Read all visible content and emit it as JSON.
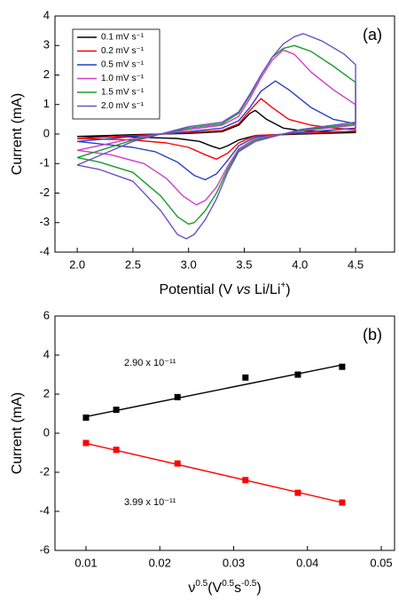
{
  "chart_data": [
    {
      "type": "line",
      "panel_label": "(a)",
      "xlabel": [
        {
          "text": "Potential (V "
        },
        {
          "text": "vs",
          "italic": true
        },
        {
          "text": " Li/Li"
        },
        {
          "text": "+",
          "sup": true
        },
        {
          "text": ")"
        }
      ],
      "ylabel": "Current (mA)",
      "xlim": [
        1.8,
        4.85
      ],
      "ylim": [
        -4,
        4
      ],
      "xticks": [
        {
          "value": 2,
          "label": "2.0"
        },
        {
          "value": 2.5,
          "label": "2.5"
        },
        {
          "value": 3,
          "label": "3.0"
        },
        {
          "value": 3.5,
          "label": "3.5"
        },
        {
          "value": 4,
          "label": "4.0"
        },
        {
          "value": 4.5,
          "label": "4.5"
        }
      ],
      "yticks": [
        -4,
        -3,
        -2,
        -1,
        0,
        1,
        2,
        3,
        4
      ],
      "legend": "upper left",
      "series": [
        {
          "name": "0.1 mV s⁻¹",
          "color": "#000000",
          "x": [
            2.0,
            2.5,
            3.0,
            3.3,
            3.45,
            3.55,
            3.6,
            3.7,
            3.85,
            4.0,
            4.25,
            4.5,
            4.5,
            4.0,
            3.6,
            3.45,
            3.35,
            3.28,
            3.2,
            3.1,
            2.9,
            2.5,
            2.0
          ],
          "values": [
            -0.08,
            -0.02,
            0.02,
            0.08,
            0.3,
            0.7,
            0.8,
            0.5,
            0.2,
            0.12,
            0.08,
            0.06,
            0.05,
            0.0,
            -0.05,
            -0.2,
            -0.4,
            -0.5,
            -0.4,
            -0.25,
            -0.15,
            -0.1,
            -0.08
          ]
        },
        {
          "name": "0.2 mV s⁻¹",
          "color": "#ff0000",
          "x": [
            2.0,
            2.5,
            3.0,
            3.3,
            3.45,
            3.55,
            3.65,
            3.75,
            3.9,
            4.1,
            4.3,
            4.5,
            4.5,
            4.0,
            3.6,
            3.45,
            3.35,
            3.25,
            3.15,
            3.0,
            2.8,
            2.5,
            2.0
          ],
          "values": [
            -0.15,
            -0.05,
            0.05,
            0.12,
            0.35,
            0.8,
            1.2,
            0.9,
            0.5,
            0.3,
            0.2,
            0.15,
            0.1,
            0.02,
            -0.05,
            -0.3,
            -0.65,
            -0.85,
            -0.7,
            -0.45,
            -0.3,
            -0.2,
            -0.15
          ]
        },
        {
          "name": "0.5 mV s⁻¹",
          "color": "#2a3fc4",
          "x": [
            2.0,
            2.5,
            3.0,
            3.3,
            3.45,
            3.55,
            3.65,
            3.78,
            3.9,
            4.1,
            4.3,
            4.5,
            4.5,
            4.0,
            3.6,
            3.45,
            3.35,
            3.25,
            3.15,
            3.05,
            2.9,
            2.7,
            2.5,
            2.0
          ],
          "values": [
            -0.25,
            -0.08,
            0.08,
            0.2,
            0.45,
            0.9,
            1.45,
            1.8,
            1.5,
            0.9,
            0.5,
            0.35,
            0.2,
            0.05,
            -0.1,
            -0.4,
            -0.9,
            -1.35,
            -1.55,
            -1.4,
            -0.95,
            -0.6,
            -0.45,
            -0.25
          ]
        },
        {
          "name": "1.0 mV s⁻¹",
          "color": "#d23cc8",
          "x": [
            2.0,
            2.5,
            3.0,
            3.3,
            3.45,
            3.55,
            3.65,
            3.75,
            3.85,
            3.95,
            4.1,
            4.3,
            4.5,
            4.5,
            4.0,
            3.6,
            3.45,
            3.35,
            3.25,
            3.15,
            3.07,
            2.95,
            2.8,
            2.6,
            2.3,
            2.0
          ],
          "values": [
            -0.55,
            -0.15,
            0.15,
            0.3,
            0.6,
            1.2,
            1.9,
            2.5,
            2.85,
            2.7,
            2.1,
            1.5,
            1.0,
            0.3,
            0.1,
            -0.15,
            -0.5,
            -1.1,
            -1.8,
            -2.25,
            -2.4,
            -2.1,
            -1.5,
            -1.0,
            -0.7,
            -0.55
          ]
        },
        {
          "name": "1.5 mV s⁻¹",
          "color": "#1a9a2a",
          "x": [
            2.0,
            2.5,
            3.0,
            3.3,
            3.45,
            3.55,
            3.65,
            3.75,
            3.85,
            3.95,
            4.1,
            4.3,
            4.5,
            4.5,
            4.0,
            3.6,
            3.45,
            3.35,
            3.25,
            3.15,
            3.05,
            3.0,
            2.9,
            2.75,
            2.5,
            2.2,
            2.0
          ],
          "values": [
            -0.8,
            -0.2,
            0.2,
            0.35,
            0.7,
            1.3,
            2.0,
            2.6,
            2.9,
            3.0,
            2.8,
            2.3,
            1.75,
            0.35,
            0.12,
            -0.2,
            -0.55,
            -1.2,
            -2.0,
            -2.6,
            -3.0,
            -3.05,
            -2.8,
            -2.1,
            -1.3,
            -0.95,
            -0.8
          ]
        },
        {
          "name": "2.0 mV s⁻¹",
          "color": "#6a50c8",
          "x": [
            2.0,
            2.5,
            3.0,
            3.3,
            3.45,
            3.55,
            3.65,
            3.75,
            3.85,
            3.95,
            4.03,
            4.2,
            4.4,
            4.5,
            4.5,
            4.0,
            3.6,
            3.45,
            3.35,
            3.25,
            3.15,
            3.05,
            2.98,
            2.9,
            2.75,
            2.5,
            2.2,
            2.0
          ],
          "values": [
            -1.05,
            -0.25,
            0.25,
            0.4,
            0.75,
            1.35,
            2.0,
            2.6,
            3.05,
            3.3,
            3.4,
            3.15,
            2.7,
            2.35,
            0.4,
            0.15,
            -0.25,
            -0.6,
            -1.3,
            -2.2,
            -2.9,
            -3.4,
            -3.55,
            -3.4,
            -2.6,
            -1.6,
            -1.2,
            -1.05
          ]
        }
      ]
    },
    {
      "type": "scatter",
      "panel_label": "(b)",
      "xlabel": [
        {
          "text": "ν"
        },
        {
          "text": "0.5",
          "sup": true
        },
        {
          "text": "(V"
        },
        {
          "text": "0.5",
          "sup": true
        },
        {
          "text": "s"
        },
        {
          "text": "-0.5",
          "sup": true
        },
        {
          "text": ")"
        }
      ],
      "ylabel": "Current (mA)",
      "xlim": [
        0.0058,
        0.0518
      ],
      "ylim": [
        -6,
        6
      ],
      "xticks": [
        0.01,
        0.02,
        0.03,
        0.04,
        0.05
      ],
      "yticks": [
        -6,
        -4,
        -2,
        0,
        2,
        4,
        6
      ],
      "annotations": [
        "2.90 x 10⁻¹¹",
        "3.99 x 10⁻¹¹"
      ],
      "series": [
        {
          "style": "markers",
          "color": "#000000",
          "x": [
            0.01,
            0.0141,
            0.0224,
            0.0316,
            0.0387,
            0.0447
          ],
          "values": [
            0.8,
            1.2,
            1.85,
            2.85,
            3.0,
            3.4
          ]
        },
        {
          "style": "markers",
          "color": "#ff0000",
          "x": [
            0.01,
            0.0141,
            0.0224,
            0.0316,
            0.0387,
            0.0447
          ],
          "values": [
            -0.5,
            -0.85,
            -1.55,
            -2.4,
            -3.05,
            -3.55
          ]
        },
        {
          "style": "line",
          "color": "#000000",
          "x": [
            0.01,
            0.0447
          ],
          "values": [
            0.85,
            3.5
          ]
        },
        {
          "style": "line",
          "color": "#ff0000",
          "x": [
            0.01,
            0.0447
          ],
          "values": [
            -0.52,
            -3.55
          ]
        }
      ]
    }
  ]
}
